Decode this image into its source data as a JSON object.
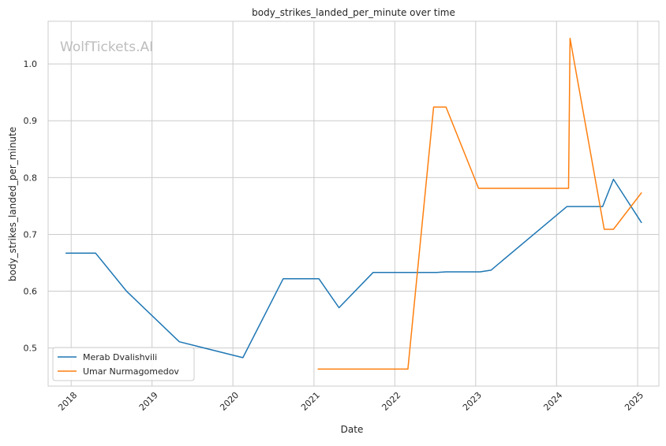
{
  "watermark": "WolfTickets.AI",
  "chart_data": {
    "type": "line",
    "title": "body_strikes_landed_per_minute over time",
    "xlabel": "Date",
    "ylabel": "body_strikes_landed_per_minute",
    "x_axis_type": "date",
    "xlim": [
      "2017-09-19",
      "2025-04-07"
    ],
    "ylim": [
      0.433,
      1.075
    ],
    "x_ticks": [
      {
        "date": "2018-01-01",
        "label": "2018"
      },
      {
        "date": "2019-01-01",
        "label": "2019"
      },
      {
        "date": "2020-01-01",
        "label": "2020"
      },
      {
        "date": "2021-01-01",
        "label": "2021"
      },
      {
        "date": "2022-01-01",
        "label": "2022"
      },
      {
        "date": "2023-01-01",
        "label": "2023"
      },
      {
        "date": "2024-01-01",
        "label": "2024"
      },
      {
        "date": "2025-01-01",
        "label": "2025"
      }
    ],
    "y_ticks": [
      {
        "value": 0.5,
        "label": "0.5"
      },
      {
        "value": 0.6,
        "label": "0.6"
      },
      {
        "value": 0.7,
        "label": "0.7"
      },
      {
        "value": 0.8,
        "label": "0.8"
      },
      {
        "value": 0.9,
        "label": "0.9"
      },
      {
        "value": 1.0,
        "label": "1.0"
      }
    ],
    "grid": true,
    "legend_position": "lower-left",
    "series": [
      {
        "name": "Merab Dvalishvili",
        "color": "#1f77b4",
        "points": [
          {
            "x": "2017-12-09",
            "y": 0.667
          },
          {
            "x": "2018-04-21",
            "y": 0.667
          },
          {
            "x": "2018-09-08",
            "y": 0.6
          },
          {
            "x": "2019-05-04",
            "y": 0.511
          },
          {
            "x": "2020-02-15",
            "y": 0.483
          },
          {
            "x": "2020-08-15",
            "y": 0.622
          },
          {
            "x": "2021-01-23",
            "y": 0.622
          },
          {
            "x": "2021-04-24",
            "y": 0.571
          },
          {
            "x": "2021-09-25",
            "y": 0.633
          },
          {
            "x": "2022-07-09",
            "y": 0.633
          },
          {
            "x": "2022-08-20",
            "y": 0.634
          },
          {
            "x": "2023-01-21",
            "y": 0.634
          },
          {
            "x": "2023-03-11",
            "y": 0.637
          },
          {
            "x": "2024-02-17",
            "y": 0.749
          },
          {
            "x": "2024-07-27",
            "y": 0.749
          },
          {
            "x": "2024-09-14",
            "y": 0.797
          },
          {
            "x": "2025-01-18",
            "y": 0.721
          }
        ]
      },
      {
        "name": "Umar Nurmagomedov",
        "color": "#ff7f0e",
        "points": [
          {
            "x": "2021-01-20",
            "y": 0.463
          },
          {
            "x": "2022-03-01",
            "y": 0.463
          },
          {
            "x": "2022-06-25",
            "y": 0.924
          },
          {
            "x": "2022-08-20",
            "y": 0.924
          },
          {
            "x": "2023-01-14",
            "y": 0.781
          },
          {
            "x": "2024-02-24",
            "y": 0.781
          },
          {
            "x": "2024-03-02",
            "y": 1.045
          },
          {
            "x": "2024-08-03",
            "y": 0.709
          },
          {
            "x": "2024-09-14",
            "y": 0.709
          },
          {
            "x": "2025-01-18",
            "y": 0.773
          }
        ]
      }
    ]
  }
}
